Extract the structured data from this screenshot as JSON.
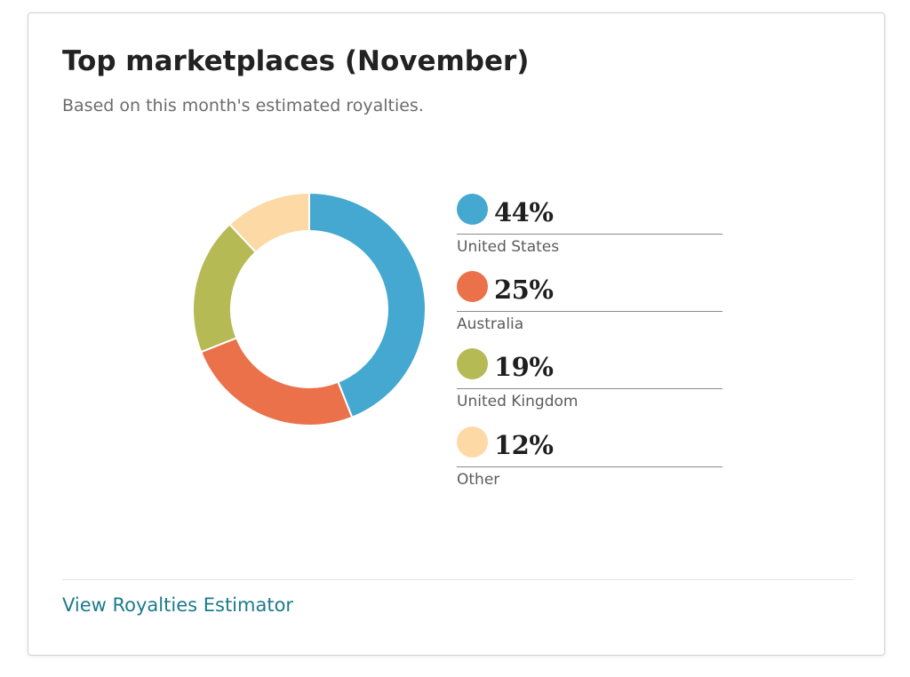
{
  "card": {
    "title": "Top marketplaces (November)",
    "subtitle": "Based on this month's estimated royalties."
  },
  "chart_data": {
    "type": "pie",
    "subtype": "donut",
    "title": "Top marketplaces (November)",
    "subtitle": "Based on this month's estimated royalties.",
    "legend_position": "right",
    "slices": [
      {
        "label": "United States",
        "value": 44,
        "display": "44%",
        "color": "#45a8d0"
      },
      {
        "label": "Australia",
        "value": 25,
        "display": "25%",
        "color": "#eb714b"
      },
      {
        "label": "United Kingdom",
        "value": 19,
        "display": "19%",
        "color": "#b5ba55"
      },
      {
        "label": "Other",
        "value": 12,
        "display": "12%",
        "color": "#fdd9a6"
      }
    ]
  },
  "footer": {
    "link_label": "View Royalties Estimator"
  }
}
